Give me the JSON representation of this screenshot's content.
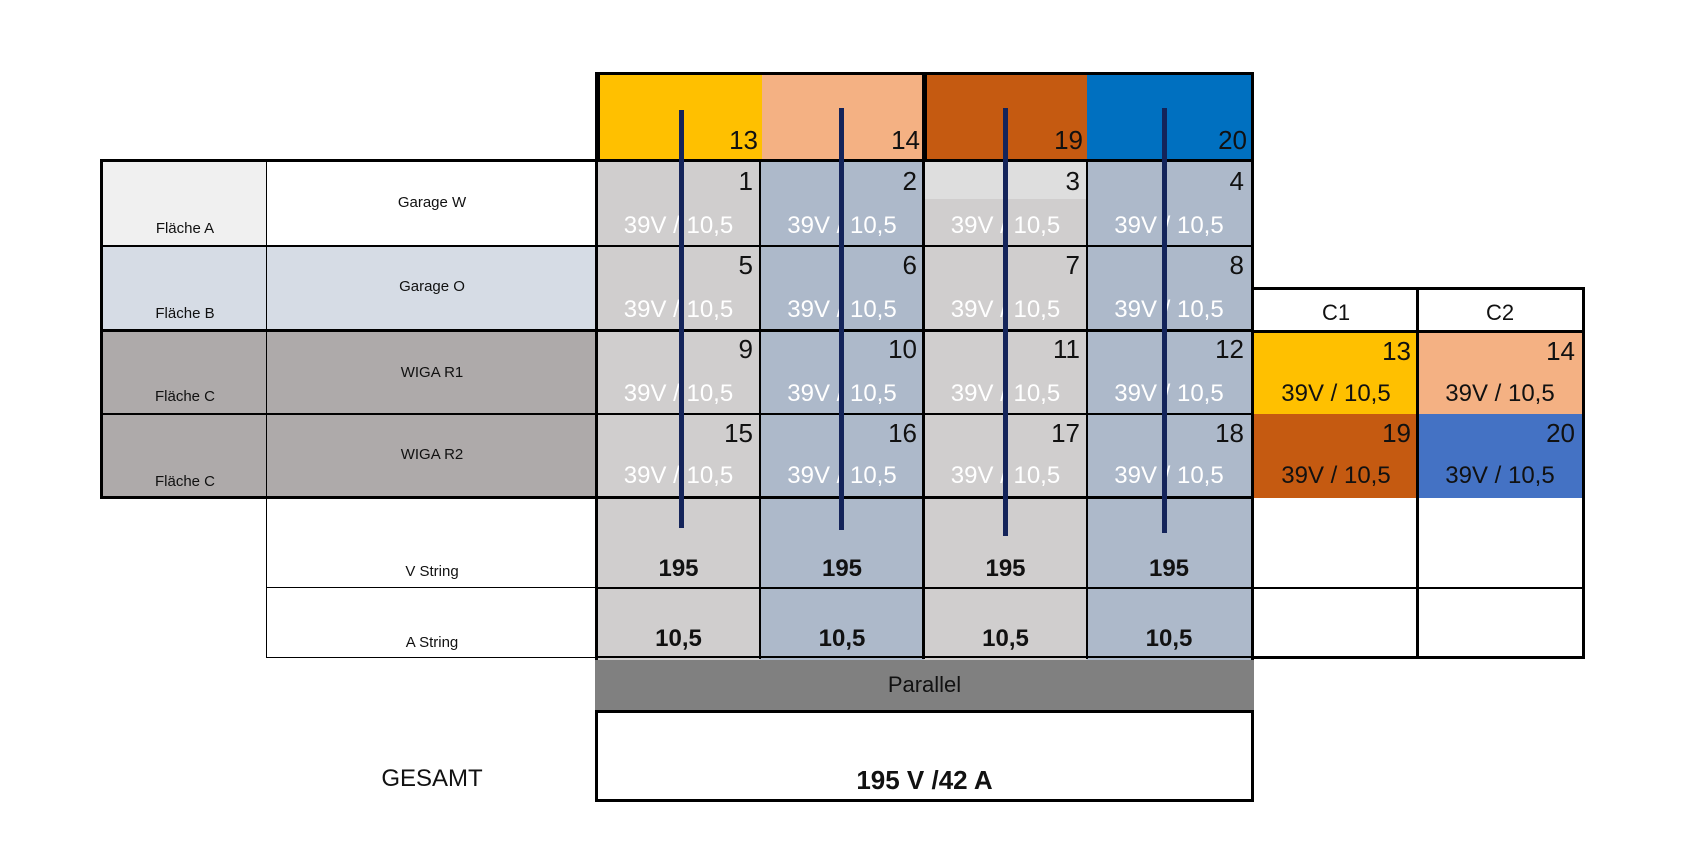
{
  "colors": {
    "yellow": "#ffc000",
    "peach": "#f4b183",
    "orange": "#c55a11",
    "blue": "#0070c0",
    "blue2": "#4472c4",
    "cell_grey": "#d0cece",
    "cell_blue": "#adb9ca",
    "navy_line": "#14245a"
  },
  "header": {
    "strings": [
      "13",
      "14",
      "19",
      "20"
    ]
  },
  "rows": [
    {
      "area": "Fläche A",
      "name": "Garage W",
      "cells": [
        "1",
        "2",
        "3",
        "4"
      ]
    },
    {
      "area": "Fläche B",
      "name": "Garage O",
      "cells": [
        "5",
        "6",
        "7",
        "8"
      ]
    },
    {
      "area": "Fläche C",
      "name": "WIGA R1",
      "cells": [
        "9",
        "10",
        "11",
        "12"
      ]
    },
    {
      "area": "Fläche C",
      "name": "WIGA R2",
      "cells": [
        "15",
        "16",
        "17",
        "18"
      ]
    }
  ],
  "module_value": "39V / 10,5",
  "summary": {
    "v_label": "V String",
    "v_values": [
      "195",
      "195",
      "195",
      "195"
    ],
    "a_label": "A String",
    "a_values": [
      "10,5",
      "10,5",
      "10,5",
      "10,5"
    ]
  },
  "parallel_label": "Parallel",
  "total": {
    "label": "GESAMT",
    "value": "195 V /42 A"
  },
  "side_table": {
    "headers": [
      "C1",
      "C2"
    ],
    "row1": [
      {
        "num": "13",
        "value": "39V / 10,5"
      },
      {
        "num": "14",
        "value": "39V / 10,5"
      }
    ],
    "row2": [
      {
        "num": "19",
        "value": "39V / 10,5"
      },
      {
        "num": "20",
        "value": "39V / 10,5"
      }
    ]
  }
}
